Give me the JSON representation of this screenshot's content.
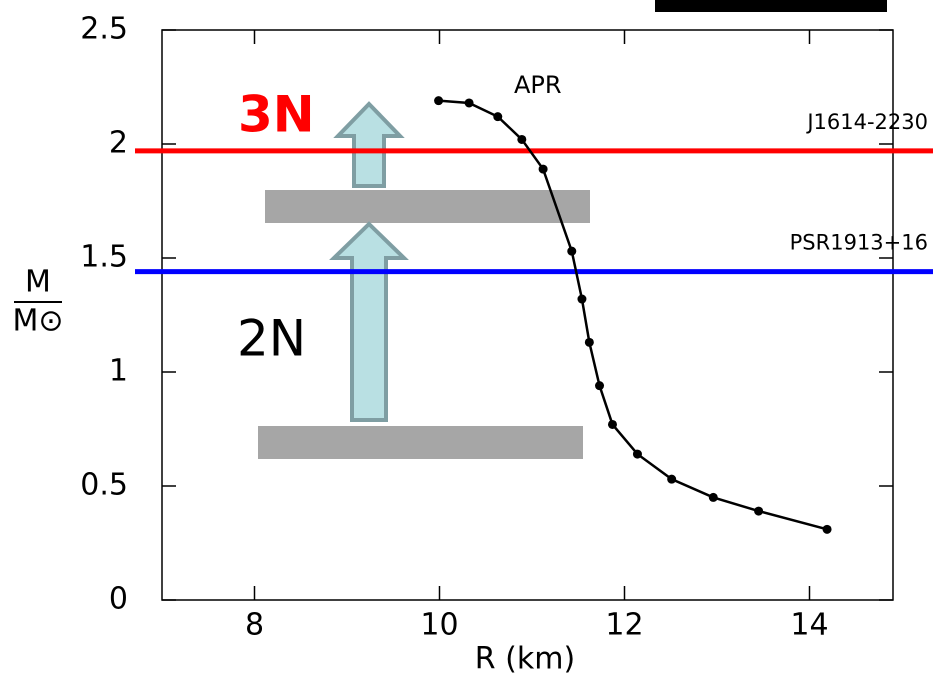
{
  "chart_data": {
    "type": "line",
    "series": [
      {
        "name": "APR",
        "color": "#000000",
        "x": [
          9.99,
          10.32,
          10.63,
          10.89,
          11.12,
          11.43,
          11.54,
          11.62,
          11.73,
          11.87,
          12.14,
          12.51,
          12.96,
          13.45,
          14.19
        ],
        "values": [
          2.19,
          2.18,
          2.12,
          2.02,
          1.89,
          1.53,
          1.32,
          1.13,
          0.94,
          0.77,
          0.64,
          0.53,
          0.45,
          0.39,
          0.31
        ]
      }
    ],
    "xlim": [
      7,
      15
    ],
    "xticks": [
      8,
      10,
      12,
      14
    ],
    "ylim": [
      0,
      2.5
    ],
    "yticks": [
      0,
      0.5,
      1,
      1.5,
      2,
      2.5
    ],
    "x_label": "R (km)",
    "y_label_top": "M",
    "y_label_bottom": "M⊙",
    "reference_lines": [
      {
        "label": "J1614-2230",
        "value": 1.97,
        "color": "#ff0000"
      },
      {
        "label": "PSR1913+16",
        "value": 1.44,
        "color": "#0000ff"
      }
    ],
    "annotations": [
      {
        "text": "3N",
        "color": "#ff0000"
      },
      {
        "text": "2N",
        "color": "#000000"
      }
    ]
  }
}
